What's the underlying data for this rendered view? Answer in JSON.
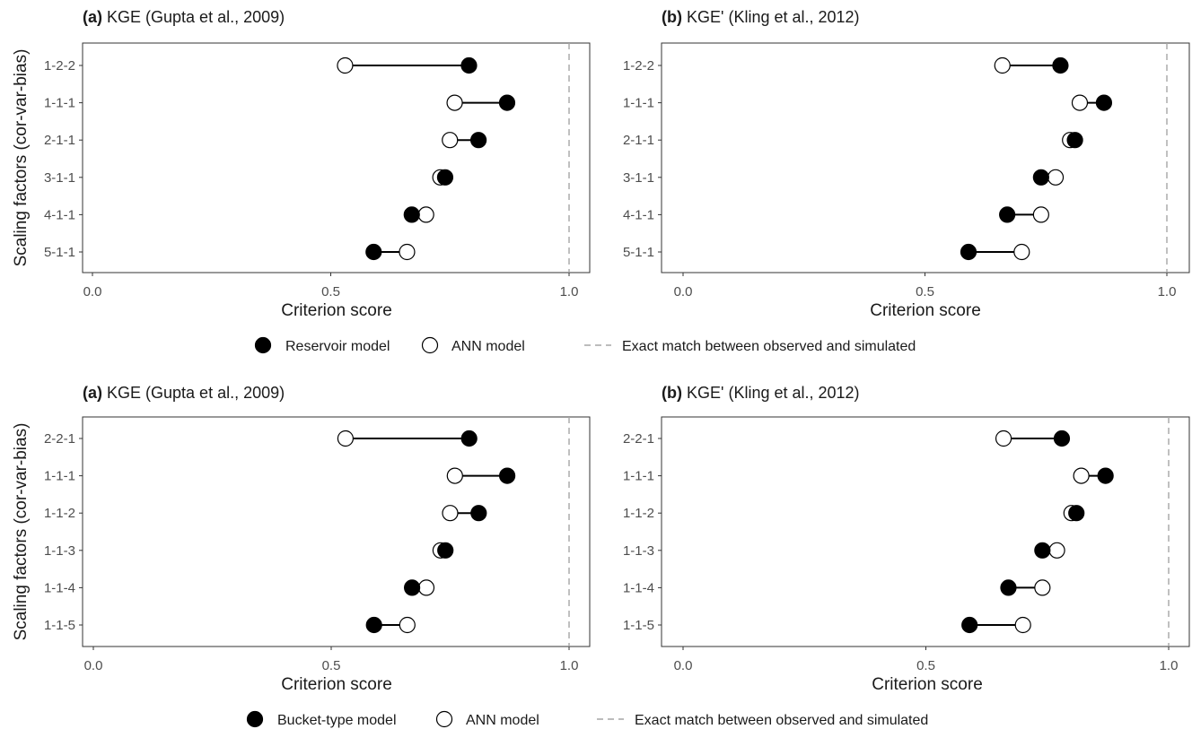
{
  "colors": {
    "filled_marker": "#000000",
    "open_marker_fill": "#ffffff",
    "segment": "#000000",
    "reference_line": "#a6a6a6"
  },
  "ylabel": "Scaling factors (cor-var-bias)",
  "xlabel": "Criterion score",
  "x_ticks": [
    "0.0",
    "0.5",
    "1.0"
  ],
  "figures": [
    {
      "panels": [
        {
          "tag": "(a)",
          "title": "KGE (Gupta et al., 2009)"
        },
        {
          "tag": "(b)",
          "title": "KGE' (Kling et al., 2012)"
        }
      ],
      "legend": {
        "filled": "Reservoir model",
        "open": "ANN model",
        "dashed": "Exact match between observed and simulated"
      }
    },
    {
      "panels": [
        {
          "tag": "(a)",
          "title": "KGE (Gupta et al., 2009)"
        },
        {
          "tag": "(b)",
          "title": "KGE' (Kling et al., 2012)"
        }
      ],
      "legend": {
        "filled": "Bucket-type model",
        "open": "ANN model",
        "dashed": "Exact match between observed and simulated"
      }
    }
  ],
  "chart_data": [
    {
      "type": "dumbbell",
      "title": "(a) KGE (Gupta et al., 2009)",
      "xlabel": "Criterion score",
      "ylabel": "Scaling factors (cor-var-bias)",
      "xlim": [
        0.0,
        1.0
      ],
      "reference_line": 1.0,
      "grid": false,
      "legend_position": "bottom",
      "categories": [
        "1-2-2",
        "1-1-1",
        "2-1-1",
        "3-1-1",
        "4-1-1",
        "5-1-1"
      ],
      "series": [
        {
          "name": "Reservoir model",
          "marker": "filled",
          "values": [
            0.79,
            0.87,
            0.81,
            0.74,
            0.67,
            0.59
          ]
        },
        {
          "name": "ANN model",
          "marker": "open",
          "values": [
            0.53,
            0.76,
            0.75,
            0.73,
            0.7,
            0.66
          ]
        }
      ]
    },
    {
      "type": "dumbbell",
      "title": "(b) KGE' (Kling et al., 2012)",
      "xlabel": "Criterion score",
      "ylabel": "",
      "xlim": [
        0.0,
        1.0
      ],
      "reference_line": 1.0,
      "grid": false,
      "legend_position": "bottom",
      "categories": [
        "1-2-2",
        "1-1-1",
        "2-1-1",
        "3-1-1",
        "4-1-1",
        "5-1-1"
      ],
      "series": [
        {
          "name": "Reservoir model",
          "marker": "filled",
          "values": [
            0.78,
            0.87,
            0.81,
            0.74,
            0.67,
            0.59
          ]
        },
        {
          "name": "ANN model",
          "marker": "open",
          "values": [
            0.66,
            0.82,
            0.8,
            0.77,
            0.74,
            0.7
          ]
        }
      ]
    },
    {
      "type": "dumbbell",
      "title": "(a) KGE (Gupta et al., 2009)",
      "xlabel": "Criterion score",
      "ylabel": "Scaling factors (cor-var-bias)",
      "xlim": [
        0.0,
        1.0
      ],
      "reference_line": 1.0,
      "grid": false,
      "legend_position": "bottom",
      "categories": [
        "2-2-1",
        "1-1-1",
        "1-1-2",
        "1-1-3",
        "1-1-4",
        "1-1-5"
      ],
      "series": [
        {
          "name": "Bucket-type model",
          "marker": "filled",
          "values": [
            0.79,
            0.87,
            0.81,
            0.74,
            0.67,
            0.59
          ]
        },
        {
          "name": "ANN model",
          "marker": "open",
          "values": [
            0.53,
            0.76,
            0.75,
            0.73,
            0.7,
            0.66
          ]
        }
      ]
    },
    {
      "type": "dumbbell",
      "title": "(b) KGE' (Kling et al., 2012)",
      "xlabel": "Criterion score",
      "ylabel": "",
      "xlim": [
        0.0,
        1.0
      ],
      "reference_line": 1.0,
      "grid": false,
      "legend_position": "bottom",
      "categories": [
        "2-2-1",
        "1-1-1",
        "1-1-2",
        "1-1-3",
        "1-1-4",
        "1-1-5"
      ],
      "series": [
        {
          "name": "Bucket-type model",
          "marker": "filled",
          "values": [
            0.78,
            0.87,
            0.81,
            0.74,
            0.67,
            0.59
          ]
        },
        {
          "name": "ANN model",
          "marker": "open",
          "values": [
            0.66,
            0.82,
            0.8,
            0.77,
            0.74,
            0.7
          ]
        }
      ]
    }
  ]
}
